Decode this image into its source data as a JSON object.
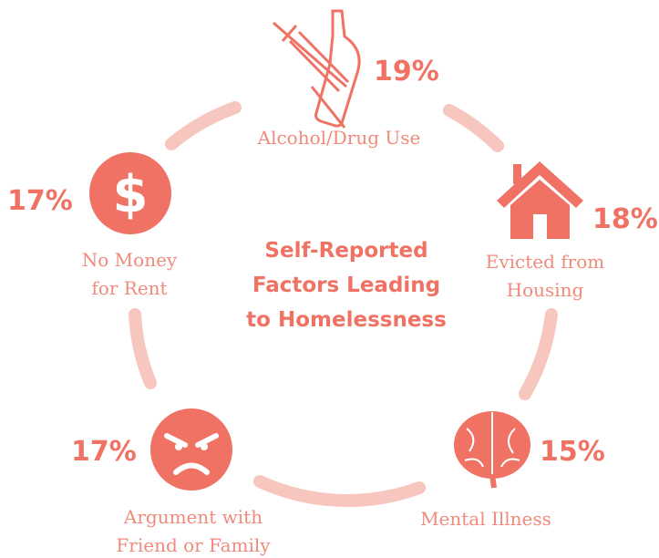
{
  "title": [
    "Self-Reported",
    "Factors Leading",
    "to Homelessness"
  ],
  "factors": [
    {
      "label": [
        "Alcohol/Drug Use"
      ],
      "percent": "19%"
    },
    {
      "label": [
        "Evicted from",
        "Housing"
      ],
      "percent": "18%"
    },
    {
      "label": [
        "Mental Illness"
      ],
      "percent": "15%"
    },
    {
      "label": [
        "Argument with",
        "Friend or Family"
      ],
      "percent": "17%"
    },
    {
      "label": [
        "No Money",
        "for Rent"
      ],
      "percent": "17%"
    }
  ]
}
